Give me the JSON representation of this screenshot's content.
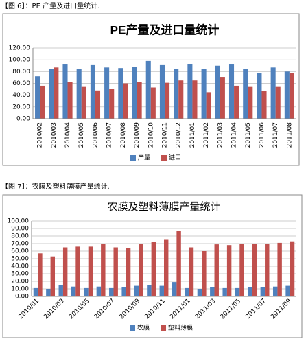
{
  "captions": [
    "【图 6】：PE 产量及进口量统计.",
    "【图 7】：农膜及塑料薄膜产量统计."
  ],
  "chart_data": [
    {
      "type": "bar",
      "title": "PE产量及进口量统计",
      "categories": [
        "2010/02",
        "2010/03",
        "2010/04",
        "2010/05",
        "2010/06",
        "2010/07",
        "2010/08",
        "2010/09",
        "2010/10",
        "2010/11",
        "2010/12",
        "2011/01",
        "2011/02",
        "2011/03",
        "2011/04",
        "2011/05",
        "2011/06",
        "2011/07",
        "2011/08"
      ],
      "series": [
        {
          "name": "产量",
          "color": "#4f81bd",
          "values": [
            72,
            84,
            92,
            85,
            91,
            87,
            86,
            88,
            98,
            91,
            85,
            93,
            85,
            90,
            92,
            85,
            77,
            87,
            80
          ]
        },
        {
          "name": "进口",
          "color": "#c0504d",
          "values": [
            56,
            87,
            62,
            54,
            48,
            51,
            60,
            62,
            53,
            61,
            65,
            65,
            45,
            71,
            56,
            54,
            47,
            54,
            77
          ]
        }
      ],
      "ylim": [
        0,
        120
      ],
      "yticks": [
        {
          "value": 0,
          "label": "0.00"
        },
        {
          "value": 20,
          "label": "20.00"
        },
        {
          "value": 40,
          "label": "40.00"
        },
        {
          "value": 60,
          "label": "60.00"
        },
        {
          "value": 80,
          "label": "80.00"
        },
        {
          "value": 100,
          "label": "100.00"
        },
        {
          "value": 120,
          "label": "120.00"
        }
      ],
      "grid": true,
      "legend": "bottom"
    },
    {
      "type": "bar",
      "title": "农膜及塑料薄膜产量统计",
      "categories": [
        "2010/01",
        null,
        "2010/03",
        null,
        "2010/05",
        null,
        "2010/07",
        null,
        "2010/09",
        null,
        "2010/11",
        null,
        "2011/01",
        null,
        "2011/03",
        null,
        "2011/05",
        null,
        "2011/07",
        null,
        "2011/09"
      ],
      "series": [
        {
          "name": "农膜",
          "color": "#4f81bd",
          "values": [
            11,
            10,
            15,
            13,
            11,
            13,
            11,
            12,
            14,
            15,
            14,
            19,
            11,
            10,
            12,
            11,
            11,
            12,
            12,
            13,
            14
          ]
        },
        {
          "name": "塑料薄膜",
          "color": "#c0504d",
          "values": [
            57,
            53,
            65,
            66,
            66,
            70,
            65,
            64,
            70,
            72,
            75,
            87,
            65,
            60,
            69,
            68,
            70,
            70,
            70,
            71,
            73
          ]
        }
      ],
      "ylim": [
        0,
        100
      ],
      "yticks": [
        {
          "value": 0,
          "label": "0.00"
        },
        {
          "value": 10,
          "label": "10.00"
        },
        {
          "value": 20,
          "label": "20.00"
        },
        {
          "value": 30,
          "label": "30.00"
        },
        {
          "value": 40,
          "label": "40.00"
        },
        {
          "value": 50,
          "label": "50.00"
        },
        {
          "value": 60,
          "label": "60.00"
        },
        {
          "value": 70,
          "label": "70.00"
        },
        {
          "value": 80,
          "label": "80.00"
        },
        {
          "value": 90,
          "label": "90.00"
        },
        {
          "value": 100,
          "label": "100.00"
        }
      ],
      "grid": true,
      "legend": "bottom"
    }
  ]
}
